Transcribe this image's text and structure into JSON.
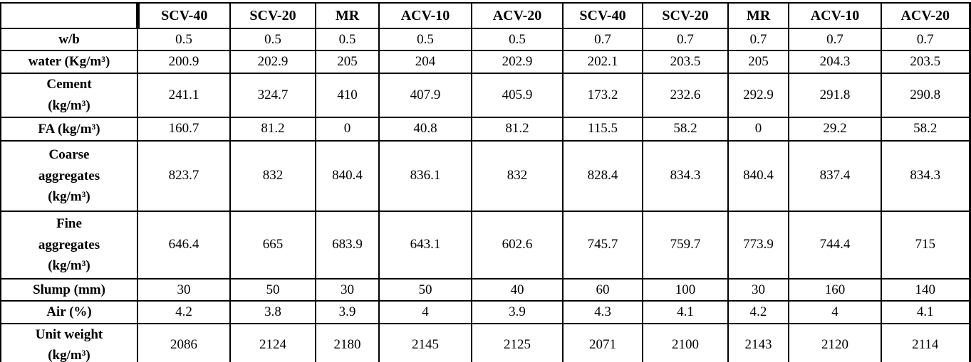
{
  "table": {
    "columns": [
      "SCV-40",
      "SCV-20",
      "MR",
      "ACV-10",
      "ACV-20",
      "SCV-40",
      "SCV-20",
      "MR",
      "ACV-10",
      "ACV-20"
    ],
    "rows": [
      {
        "label": "w/b",
        "values": [
          "0.5",
          "0.5",
          "0.5",
          "0.5",
          "0.5",
          "0.7",
          "0.7",
          "0.7",
          "0.7",
          "0.7"
        ]
      },
      {
        "label": "water (Kg/m³)",
        "values": [
          "200.9",
          "202.9",
          "205",
          "204",
          "202.9",
          "202.1",
          "203.5",
          "205",
          "204.3",
          "203.5"
        ]
      },
      {
        "label": "Cement\n(kg/m³)",
        "values": [
          "241.1",
          "324.7",
          "410",
          "407.9",
          "405.9",
          "173.2",
          "232.6",
          "292.9",
          "291.8",
          "290.8"
        ]
      },
      {
        "label": "FA (kg/m³)",
        "values": [
          "160.7",
          "81.2",
          "0",
          "40.8",
          "81.2",
          "115.5",
          "58.2",
          "0",
          "29.2",
          "58.2"
        ]
      },
      {
        "label": "Coarse\naggregates\n(kg/m³)",
        "values": [
          "823.7",
          "832",
          "840.4",
          "836.1",
          "832",
          "828.4",
          "834.3",
          "840.4",
          "837.4",
          "834.3"
        ]
      },
      {
        "label": "Fine\naggregates\n(kg/m³)",
        "values": [
          "646.4",
          "665",
          "683.9",
          "643.1",
          "602.6",
          "745.7",
          "759.7",
          "773.9",
          "744.4",
          "715"
        ]
      },
      {
        "label": "Slump (mm)",
        "values": [
          "30",
          "50",
          "30",
          "50",
          "40",
          "60",
          "100",
          "30",
          "160",
          "140"
        ]
      },
      {
        "label": "Air (%)",
        "values": [
          "4.2",
          "3.8",
          "3.9",
          "4",
          "3.9",
          "4.3",
          "4.1",
          "4.2",
          "4",
          "4.1"
        ]
      },
      {
        "label": "Unit weight\n(kg/m³)",
        "values": [
          "2086",
          "2124",
          "2180",
          "2145",
          "2125",
          "2071",
          "2100",
          "2143",
          "2120",
          "2114"
        ]
      }
    ],
    "colors": {
      "border": "#000000",
      "text": "#000000",
      "background": "#ffffff"
    }
  }
}
